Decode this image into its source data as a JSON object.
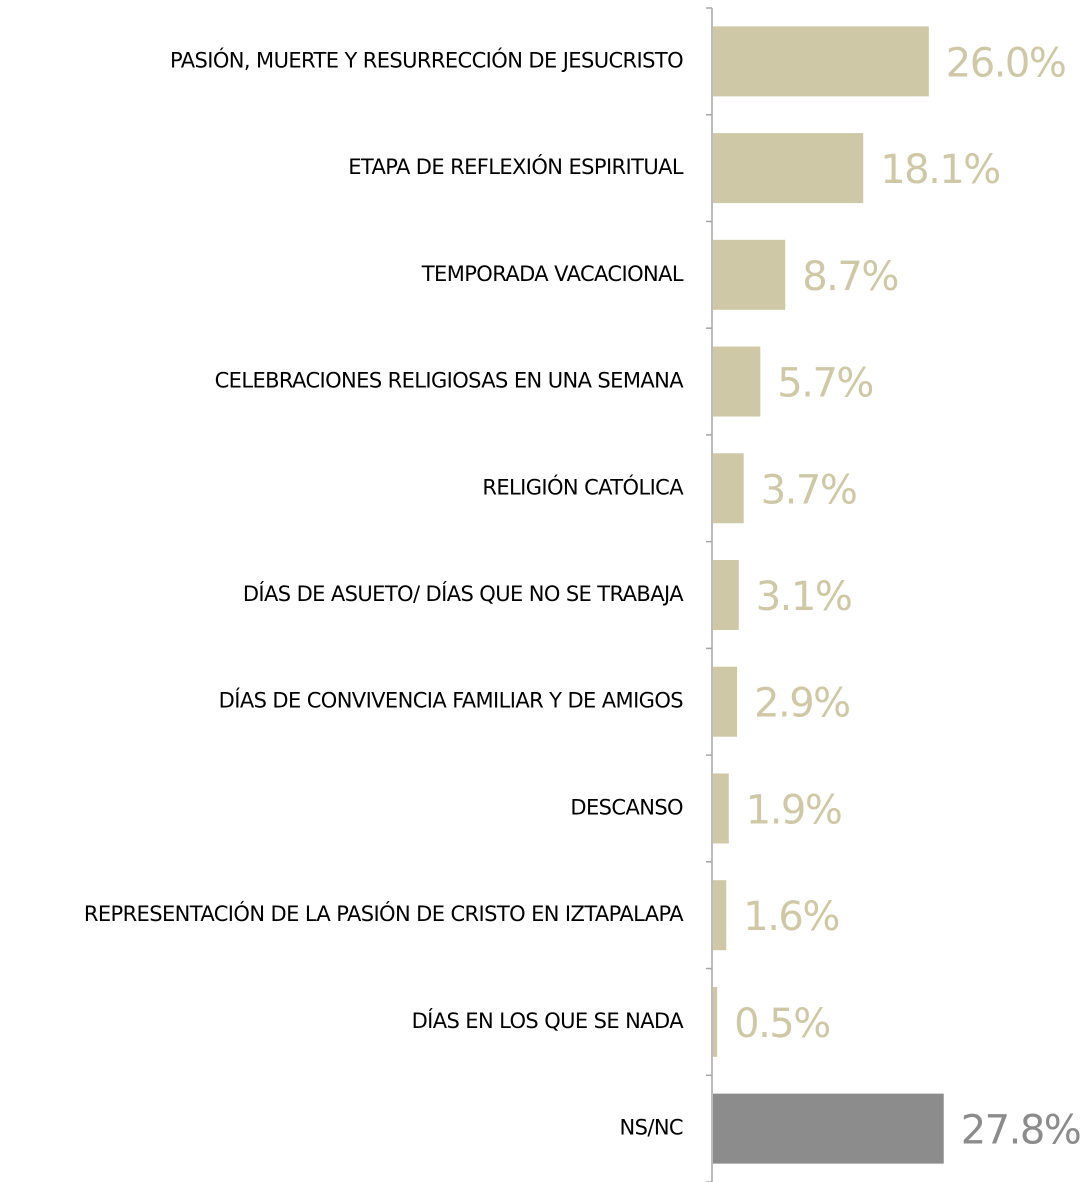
{
  "chart_data": {
    "type": "bar",
    "orientation": "horizontal",
    "categories": [
      "PASIÓN, MUERTE Y RESURRECCIÓN  DE JESUCRISTO",
      "ETAPA DE REFLEXIÓN ESPIRITUAL",
      "TEMPORADA VACACIONAL",
      "CELEBRACIONES RELIGIOSAS EN UNA SEMANA",
      "RELIGIÓN CATÓLICA",
      "DÍAS DE ASUETO/ DÍAS QUE NO SE TRABAJA",
      "DÍAS DE CONVIVENCIA FAMILIAR Y DE AMIGOS",
      "DESCANSO",
      "REPRESENTACIÓN DE LA PASIÓN DE CRISTO EN IZTAPALAPA",
      "DÍAS EN LOS QUE SE NADA",
      "NS/NC"
    ],
    "values": [
      26.0,
      18.1,
      8.7,
      5.7,
      3.7,
      3.1,
      2.9,
      1.9,
      1.6,
      0.5,
      27.8
    ],
    "value_labels": [
      "26.0%",
      "18.1%",
      "8.7%",
      "5.7%",
      "3.7%",
      "3.1%",
      "2.9%",
      "1.9%",
      "1.6%",
      "0.5%",
      "27.8%"
    ],
    "colors": [
      "#cfc8a6",
      "#cfc8a6",
      "#cfc8a6",
      "#cfc8a6",
      "#cfc8a6",
      "#cfc8a6",
      "#cfc8a6",
      "#cfc8a6",
      "#cfc8a6",
      "#cfc8a6",
      "#8c8c8c"
    ]
  }
}
